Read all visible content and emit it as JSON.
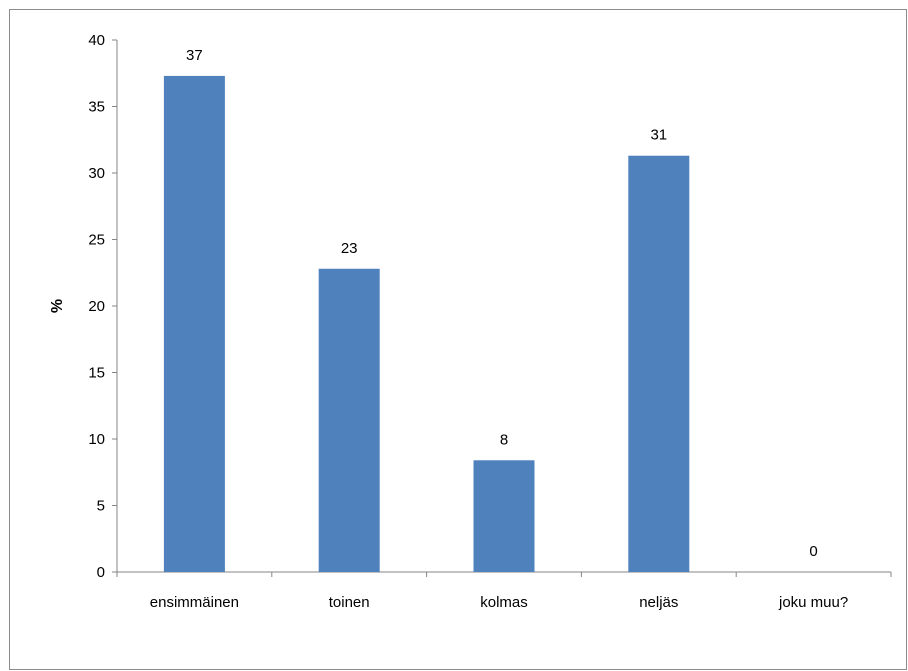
{
  "chart_data": {
    "type": "bar",
    "title": "",
    "xlabel": "",
    "ylabel": "%",
    "categories": [
      "ensimmäinen",
      "toinen",
      "kolmas",
      "neljäs",
      "joku muu?"
    ],
    "values": [
      37.3,
      22.8,
      8.4,
      31.3,
      0
    ],
    "value_labels": [
      "37",
      "23",
      "8",
      "31",
      "0"
    ],
    "yticks": [
      0,
      5,
      10,
      15,
      20,
      25,
      30,
      35,
      40
    ],
    "ylim": [
      0,
      40
    ],
    "grid": false,
    "legend": "none",
    "bar_color": "#4f81bd"
  }
}
